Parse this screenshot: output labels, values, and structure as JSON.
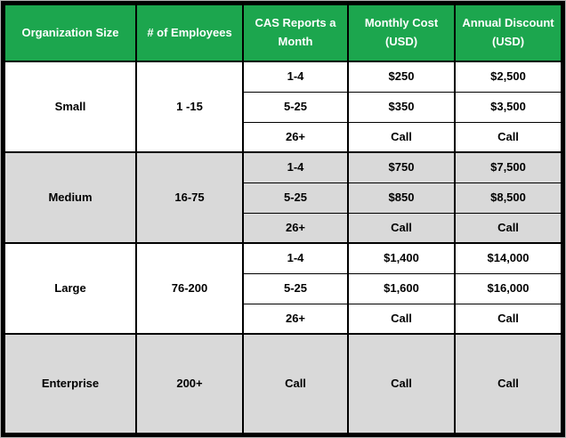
{
  "chart_data": {
    "type": "table",
    "title": "",
    "columns": [
      "Organization Size",
      "# of Employees",
      "CAS Reports a Month",
      "Monthly Cost (USD)",
      "Annual Discount (USD)"
    ],
    "rows": [
      [
        "Small",
        "1 -15",
        "1-4",
        "$250",
        "$2,500"
      ],
      [
        "Small",
        "1 -15",
        "5-25",
        "$350",
        "$3,500"
      ],
      [
        "Small",
        "1 -15",
        "26+",
        "Call",
        "Call"
      ],
      [
        "Medium",
        "16-75",
        "1-4",
        "$750",
        "$7,500"
      ],
      [
        "Medium",
        "16-75",
        "5-25",
        "$850",
        "$8,500"
      ],
      [
        "Medium",
        "16-75",
        "26+",
        "Call",
        "Call"
      ],
      [
        "Large",
        "76-200",
        "1-4",
        "$1,400",
        "$14,000"
      ],
      [
        "Large",
        "76-200",
        "5-25",
        "$1,600",
        "$16,000"
      ],
      [
        "Large",
        "76-200",
        "26+",
        "Call",
        "Call"
      ],
      [
        "Enterprise",
        "200+",
        "Call",
        "Call",
        "Call"
      ]
    ],
    "layout": {
      "merged_columns": [
        "Organization Size",
        "# of Employees"
      ],
      "group_row_counts": [
        3,
        3,
        3,
        1
      ],
      "grid": "on"
    }
  },
  "colors": {
    "header_bg": "#1CA64E",
    "header_text": "#FFFFFF",
    "row_white_bg": "#FFFFFF",
    "row_gray_bg": "#D9D9D9",
    "border": "#000000",
    "body_text": "#000000"
  }
}
